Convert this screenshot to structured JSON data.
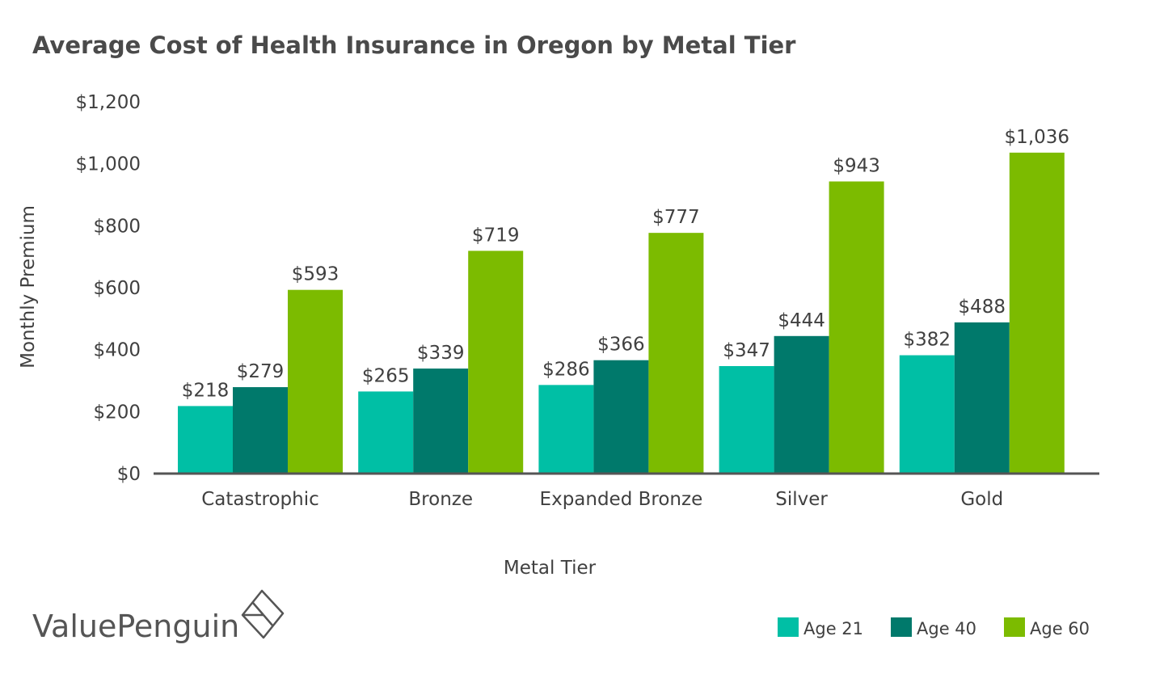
{
  "chart_data": {
    "type": "bar",
    "title": "Average Cost of Health Insurance in Oregon by Metal Tier",
    "xlabel": "Metal Tier",
    "ylabel": "Monthly Premium",
    "categories": [
      "Catastrophic",
      "Bronze",
      "Expanded Bronze",
      "Silver",
      "Gold"
    ],
    "series": [
      {
        "name": "Age 21",
        "color": "#00bfa5",
        "values": [
          218,
          265,
          286,
          347,
          382
        ],
        "labels": [
          "$218",
          "$265",
          "$286",
          "$347",
          "$382"
        ]
      },
      {
        "name": "Age 40",
        "color": "#00796b",
        "values": [
          279,
          339,
          366,
          444,
          488
        ],
        "labels": [
          "$279",
          "$339",
          "$366",
          "$444",
          "$488"
        ]
      },
      {
        "name": "Age 60",
        "color": "#7cbb00",
        "values": [
          593,
          719,
          777,
          943,
          1036
        ],
        "labels": [
          "$593",
          "$719",
          "$777",
          "$943",
          "$1,036"
        ]
      }
    ],
    "ylim": [
      0,
      1200
    ],
    "yticks": [
      0,
      200,
      400,
      600,
      800,
      1000,
      1200
    ],
    "ytick_labels": [
      "$0",
      "$200",
      "$400",
      "$600",
      "$800",
      "$1,000",
      "$1,200"
    ],
    "grid": false,
    "legend_position": "bottom-right",
    "axis_color": "#555555"
  },
  "brand": {
    "name": "ValuePenguin",
    "icon": "valuepenguin-logo-icon"
  }
}
